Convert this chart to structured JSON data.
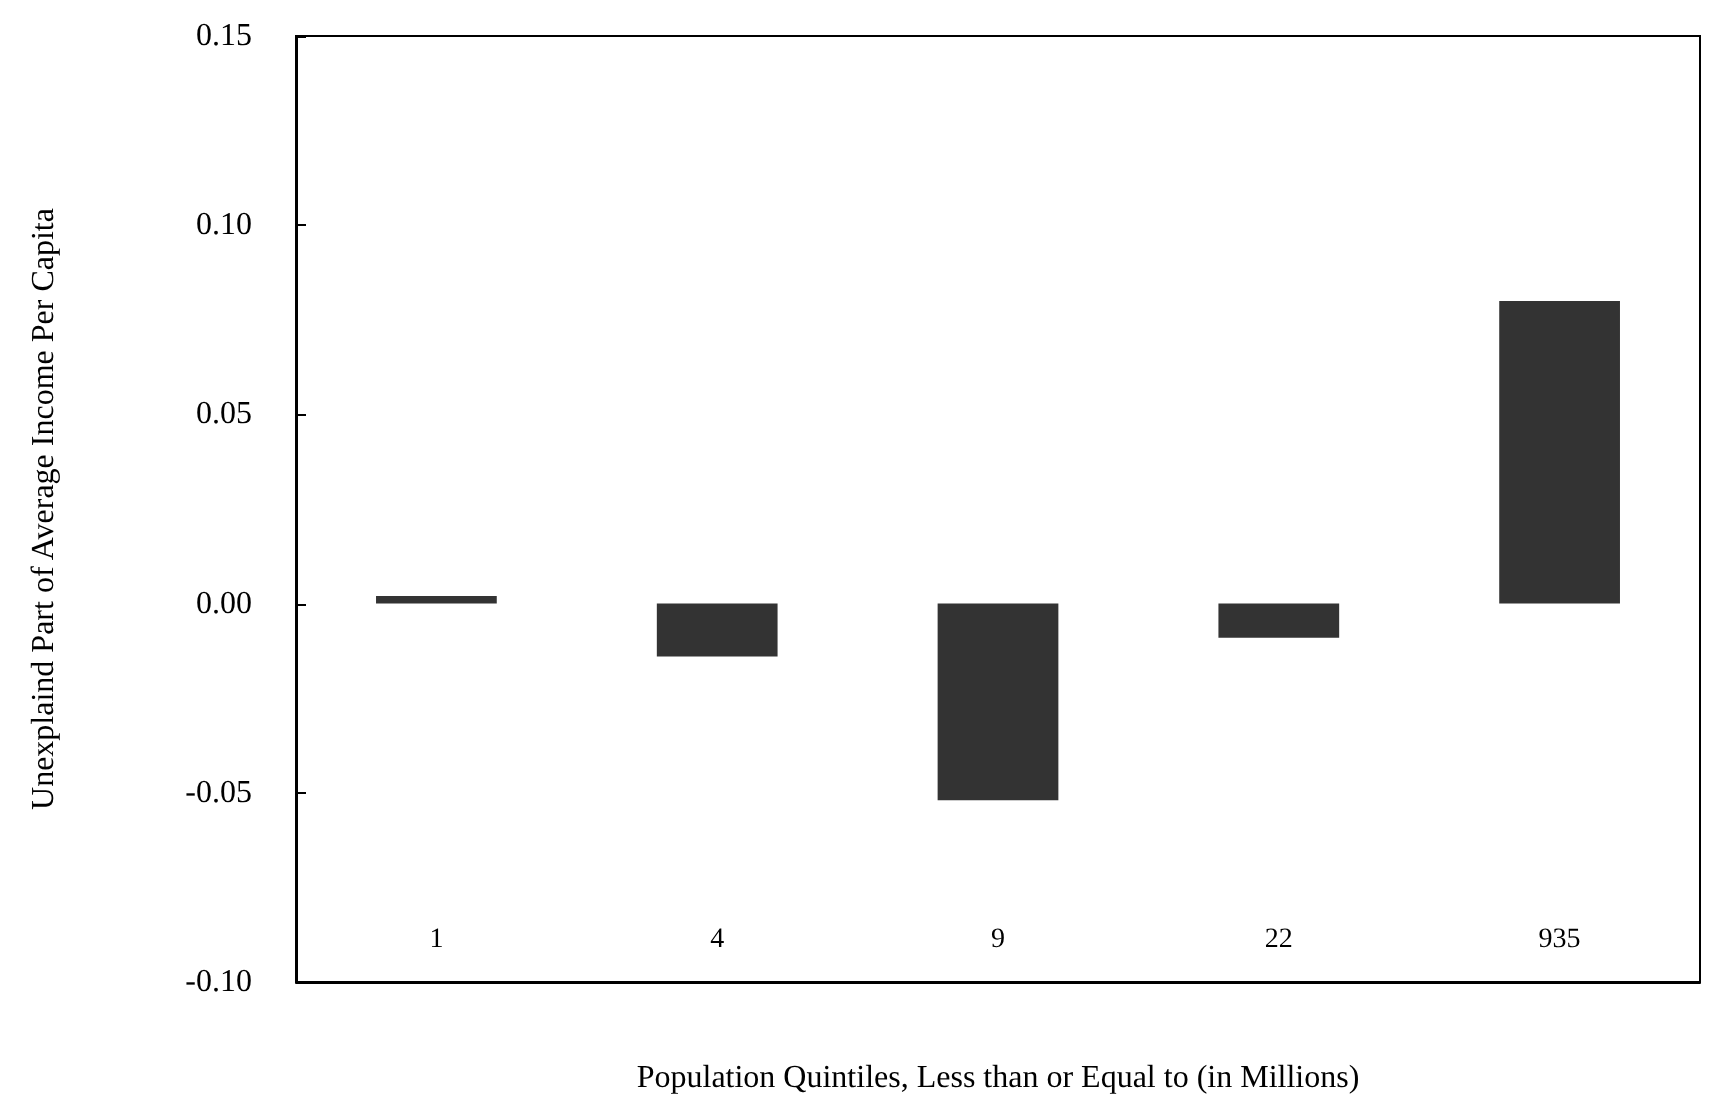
{
  "chart_data": {
    "type": "bar",
    "xlabel": "Population Quintiles, Less than or Equal to (in Millions)",
    "ylabel": "Unexplaind Part of Average Income Per Capita",
    "categories": [
      "1",
      "4",
      "9",
      "22",
      "935"
    ],
    "values": [
      0.002,
      -0.014,
      -0.052,
      -0.009,
      0.08
    ],
    "color": "#333333",
    "ylim": [
      -0.1,
      0.15
    ],
    "yticks": [
      {
        "value": -0.1,
        "label": "-0.10"
      },
      {
        "value": -0.05,
        "label": "-0.05"
      },
      {
        "value": 0,
        "label": "0.00"
      },
      {
        "value": 0.05,
        "label": "0.05"
      },
      {
        "value": 0.1,
        "label": "0.10"
      },
      {
        "value": 0.15,
        "label": "0.15"
      }
    ],
    "grid": false
  }
}
